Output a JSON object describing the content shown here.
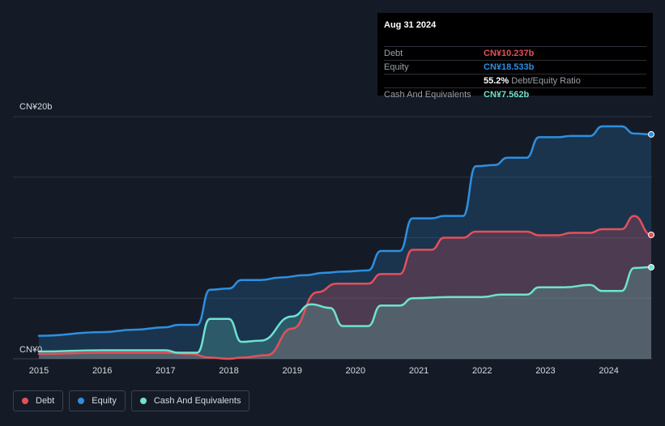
{
  "tooltip": {
    "date": "Aug 31 2024",
    "rows": [
      {
        "label": "Debt",
        "value": "CN¥10.237b",
        "color": "#e4505a"
      },
      {
        "label": "Equity",
        "value": "CN¥18.533b",
        "color": "#2e8fe0"
      },
      {
        "label": "",
        "value": "55.2%",
        "extra": "Debt/Equity Ratio",
        "color": "#ffffff"
      },
      {
        "label": "Cash And Equivalents",
        "value": "CN¥7.562b",
        "color": "#6fe3cf"
      }
    ]
  },
  "legend": [
    {
      "label": "Debt",
      "color": "#e4505a"
    },
    {
      "label": "Equity",
      "color": "#2e8fe0"
    },
    {
      "label": "Cash And Equivalents",
      "color": "#6fe3cf"
    }
  ],
  "chart_data": {
    "type": "area",
    "ylabel_top": "CN¥20b",
    "ylabel_bottom": "CN¥0",
    "ylim": [
      0,
      20
    ],
    "xlim": [
      2015.0,
      2024.67
    ],
    "x_ticks": [
      "2015",
      "2016",
      "2017",
      "2018",
      "2019",
      "2020",
      "2021",
      "2022",
      "2023",
      "2024"
    ],
    "grid": true,
    "series": [
      {
        "name": "Equity",
        "color": "#2e8fe0",
        "x": [
          2015.0,
          2016.0,
          2016.5,
          2017.0,
          2017.2,
          2017.5,
          2017.7,
          2018.0,
          2018.2,
          2018.5,
          2018.8,
          2019.2,
          2019.5,
          2019.8,
          2020.2,
          2020.4,
          2020.7,
          2020.9,
          2021.2,
          2021.4,
          2021.7,
          2021.9,
          2022.2,
          2022.4,
          2022.7,
          2022.9,
          2023.2,
          2023.4,
          2023.7,
          2023.9,
          2024.2,
          2024.4,
          2024.67
        ],
        "values": [
          1.9,
          2.2,
          2.4,
          2.6,
          2.8,
          2.8,
          5.7,
          5.8,
          6.5,
          6.5,
          6.7,
          6.9,
          7.1,
          7.2,
          7.3,
          8.9,
          8.9,
          11.6,
          11.6,
          11.8,
          11.8,
          15.9,
          16.0,
          16.6,
          16.6,
          18.3,
          18.3,
          18.4,
          18.4,
          19.2,
          19.2,
          18.6,
          18.533
        ]
      },
      {
        "name": "Debt",
        "color": "#e4505a",
        "x": [
          2015.0,
          2016.0,
          2017.0,
          2017.4,
          2017.7,
          2018.0,
          2018.2,
          2018.6,
          2019.0,
          2019.4,
          2019.7,
          2020.2,
          2020.4,
          2020.7,
          2020.9,
          2021.2,
          2021.4,
          2021.7,
          2021.9,
          2022.2,
          2022.7,
          2022.9,
          2023.2,
          2023.4,
          2023.7,
          2023.9,
          2024.2,
          2024.4,
          2024.67
        ],
        "values": [
          0.4,
          0.5,
          0.5,
          0.4,
          0.1,
          0.0,
          0.1,
          0.3,
          2.5,
          5.5,
          6.2,
          6.2,
          7.0,
          7.0,
          9.0,
          9.0,
          10.0,
          10.0,
          10.5,
          10.5,
          10.5,
          10.2,
          10.2,
          10.4,
          10.4,
          10.7,
          10.7,
          11.8,
          10.237
        ]
      },
      {
        "name": "Cash And Equivalents",
        "color": "#6fe3cf",
        "x": [
          2015.0,
          2016.0,
          2017.0,
          2017.2,
          2017.5,
          2017.7,
          2018.0,
          2018.2,
          2018.5,
          2019.0,
          2019.3,
          2019.6,
          2019.8,
          2020.2,
          2020.4,
          2020.7,
          2020.9,
          2021.5,
          2022.0,
          2022.3,
          2022.7,
          2022.9,
          2023.3,
          2023.7,
          2023.9,
          2024.2,
          2024.4,
          2024.67
        ],
        "values": [
          0.6,
          0.7,
          0.7,
          0.5,
          0.5,
          3.3,
          3.3,
          1.4,
          1.5,
          3.5,
          4.5,
          4.2,
          2.7,
          2.7,
          4.4,
          4.4,
          5.0,
          5.1,
          5.1,
          5.3,
          5.3,
          5.9,
          5.9,
          6.1,
          5.6,
          5.6,
          7.5,
          7.562
        ]
      }
    ]
  }
}
